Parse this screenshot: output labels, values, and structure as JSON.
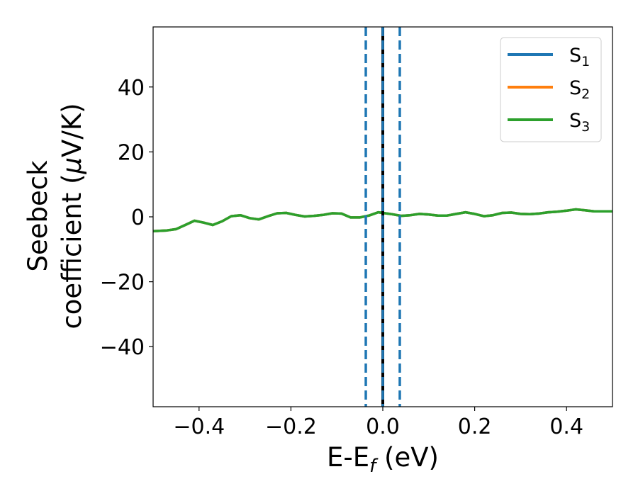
{
  "chart_data": {
    "type": "line",
    "xlabel_main": "E-E",
    "xlabel_sub": "f",
    "xlabel_unit": " (eV)",
    "ylabel_line1": "Seebeck",
    "ylabel_line2_text": "coefficient  (",
    "ylabel_line2_mu": "μ",
    "ylabel_line2_unit": "V/K)",
    "xlim": [
      -0.5,
      0.5
    ],
    "ylim": [
      -58.5,
      58.5
    ],
    "xticks": [
      -0.4,
      -0.2,
      0.0,
      0.2,
      0.4
    ],
    "xtick_labels": [
      "−0.4",
      "−0.2",
      "0.0",
      "0.2",
      "0.4"
    ],
    "yticks": [
      -40,
      -20,
      0,
      20,
      40
    ],
    "ytick_labels": [
      "−40",
      "−20",
      "0",
      "20",
      "40"
    ],
    "legend_position": "top-right",
    "grid": false,
    "vertical_lines": [
      {
        "x": 0.0,
        "color": "#000000",
        "style": "solid"
      },
      {
        "x": -0.037,
        "color": "#1f77b4",
        "style": "dashed"
      },
      {
        "x": 0.0,
        "color": "#1f77b4",
        "style": "dashed"
      },
      {
        "x": 0.037,
        "color": "#1f77b4",
        "style": "dashed"
      }
    ],
    "x": [
      -0.5,
      -0.47,
      -0.45,
      -0.43,
      -0.41,
      -0.39,
      -0.37,
      -0.35,
      -0.33,
      -0.31,
      -0.29,
      -0.27,
      -0.25,
      -0.23,
      -0.21,
      -0.19,
      -0.17,
      -0.15,
      -0.13,
      -0.11,
      -0.09,
      -0.07,
      -0.05,
      -0.03,
      -0.01,
      0.0,
      0.02,
      0.04,
      0.06,
      0.08,
      0.1,
      0.12,
      0.14,
      0.16,
      0.18,
      0.2,
      0.22,
      0.24,
      0.26,
      0.28,
      0.3,
      0.32,
      0.34,
      0.36,
      0.38,
      0.4,
      0.42,
      0.44,
      0.46,
      0.48,
      0.5
    ],
    "series": [
      {
        "name": "S",
        "sub": "1",
        "color": "#1f77b4",
        "values": [
          -4.4,
          -4.2,
          -3.8,
          -2.5,
          -1.2,
          -1.8,
          -2.5,
          -1.4,
          0.2,
          0.5,
          -0.4,
          -0.8,
          0.2,
          1.1,
          1.2,
          0.6,
          0.1,
          0.3,
          0.6,
          1.1,
          1.0,
          -0.2,
          -0.2,
          0.4,
          1.4,
          1.2,
          0.8,
          0.3,
          0.5,
          0.9,
          0.7,
          0.4,
          0.4,
          0.9,
          1.4,
          0.9,
          0.2,
          0.5,
          1.2,
          1.3,
          0.9,
          0.8,
          1.0,
          1.4,
          1.6,
          1.9,
          2.3,
          2.0,
          1.7,
          1.7,
          1.7
        ]
      },
      {
        "name": "S",
        "sub": "2",
        "color": "#ff7f0e",
        "values": [
          -4.4,
          -4.2,
          -3.8,
          -2.5,
          -1.2,
          -1.8,
          -2.5,
          -1.4,
          0.2,
          0.5,
          -0.4,
          -0.8,
          0.2,
          1.1,
          1.2,
          0.6,
          0.1,
          0.3,
          0.6,
          1.1,
          1.0,
          -0.2,
          -0.2,
          0.4,
          1.4,
          1.2,
          0.8,
          0.3,
          0.5,
          0.9,
          0.7,
          0.4,
          0.4,
          0.9,
          1.4,
          0.9,
          0.2,
          0.5,
          1.2,
          1.3,
          0.9,
          0.8,
          1.0,
          1.4,
          1.6,
          1.9,
          2.3,
          2.0,
          1.7,
          1.7,
          1.7
        ]
      },
      {
        "name": "S",
        "sub": "3",
        "color": "#2ca02c",
        "values": [
          -4.4,
          -4.2,
          -3.8,
          -2.5,
          -1.2,
          -1.8,
          -2.5,
          -1.4,
          0.2,
          0.5,
          -0.4,
          -0.8,
          0.2,
          1.1,
          1.2,
          0.6,
          0.1,
          0.3,
          0.6,
          1.1,
          1.0,
          -0.2,
          -0.2,
          0.4,
          1.4,
          1.2,
          0.8,
          0.3,
          0.5,
          0.9,
          0.7,
          0.4,
          0.4,
          0.9,
          1.4,
          0.9,
          0.2,
          0.5,
          1.2,
          1.3,
          0.9,
          0.8,
          1.0,
          1.4,
          1.6,
          1.9,
          2.3,
          2.0,
          1.7,
          1.7,
          1.7
        ]
      }
    ]
  }
}
